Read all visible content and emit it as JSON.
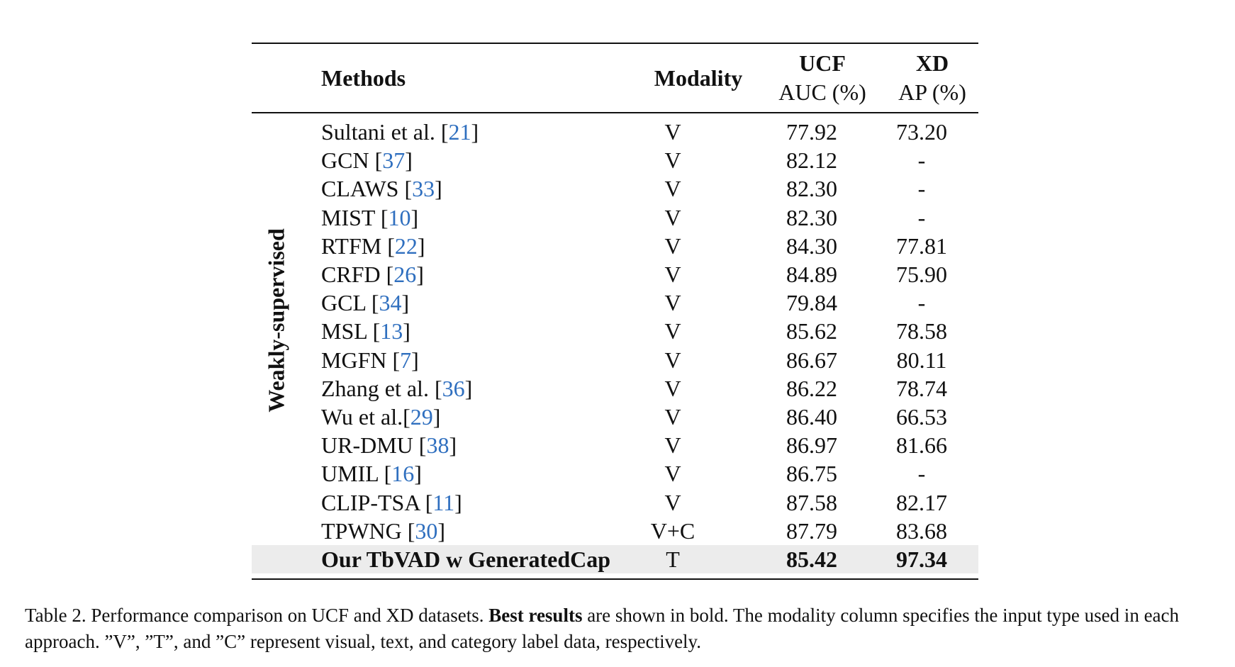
{
  "table": {
    "header": {
      "methods": "Methods",
      "modality": "Modality",
      "ucf_top": "UCF",
      "ucf_sub": "AUC (%)",
      "xd_top": "XD",
      "xd_sub": "AP (%)"
    },
    "group_label": "Weakly-supervised",
    "rows": [
      {
        "method": "Sultani et al. ",
        "cite": "21",
        "modality": "V",
        "ucf": "77.92",
        "xd": "73.20"
      },
      {
        "method": "GCN ",
        "cite": "37",
        "modality": "V",
        "ucf": "82.12",
        "xd": "-"
      },
      {
        "method": "CLAWS ",
        "cite": "33",
        "modality": "V",
        "ucf": "82.30",
        "xd": "-"
      },
      {
        "method": "MIST ",
        "cite": "10",
        "modality": "V",
        "ucf": "82.30",
        "xd": "-"
      },
      {
        "method": "RTFM ",
        "cite": "22",
        "modality": "V",
        "ucf": "84.30",
        "xd": "77.81"
      },
      {
        "method": "CRFD ",
        "cite": "26",
        "modality": "V",
        "ucf": "84.89",
        "xd": "75.90"
      },
      {
        "method": "GCL ",
        "cite": "34",
        "modality": "V",
        "ucf": "79.84",
        "xd": "-"
      },
      {
        "method": "MSL ",
        "cite": "13",
        "modality": "V",
        "ucf": "85.62",
        "xd": "78.58"
      },
      {
        "method": "MGFN ",
        "cite": "7",
        "modality": "V",
        "ucf": "86.67",
        "xd": "80.11"
      },
      {
        "method": "Zhang et al. ",
        "cite": "36",
        "modality": "V",
        "ucf": "86.22",
        "xd": "78.74"
      },
      {
        "method": "Wu et al.",
        "cite": "29",
        "modality": "V",
        "ucf": "86.40",
        "xd": "66.53"
      },
      {
        "method": "UR-DMU ",
        "cite": "38",
        "modality": "V",
        "ucf": "86.97",
        "xd": "81.66"
      },
      {
        "method": "UMIL ",
        "cite": "16",
        "modality": "V",
        "ucf": "86.75",
        "xd": "-"
      },
      {
        "method": "CLIP-TSA ",
        "cite": "11",
        "modality": "V",
        "ucf": "87.58",
        "xd": "82.17"
      },
      {
        "method": "TPWNG ",
        "cite": "30",
        "modality": "V+C",
        "ucf": "87.79",
        "xd": "83.68"
      }
    ],
    "highlight_row": {
      "method": "Our TbVAD w GeneratedCap",
      "modality": "T",
      "ucf": "85.42",
      "xd": "97.34"
    }
  },
  "caption": {
    "prefix": "Table 2. Performance comparison on UCF and XD datasets. ",
    "bold": "Best results",
    "suffix": " are shown in bold. The modality column specifies the input type used in each approach. ”V”, ”T”, and ”C” represent visual, text, and category label data, respectively."
  },
  "colors": {
    "citation": "#2f6fbf",
    "highlight_bg": "#ececec"
  }
}
